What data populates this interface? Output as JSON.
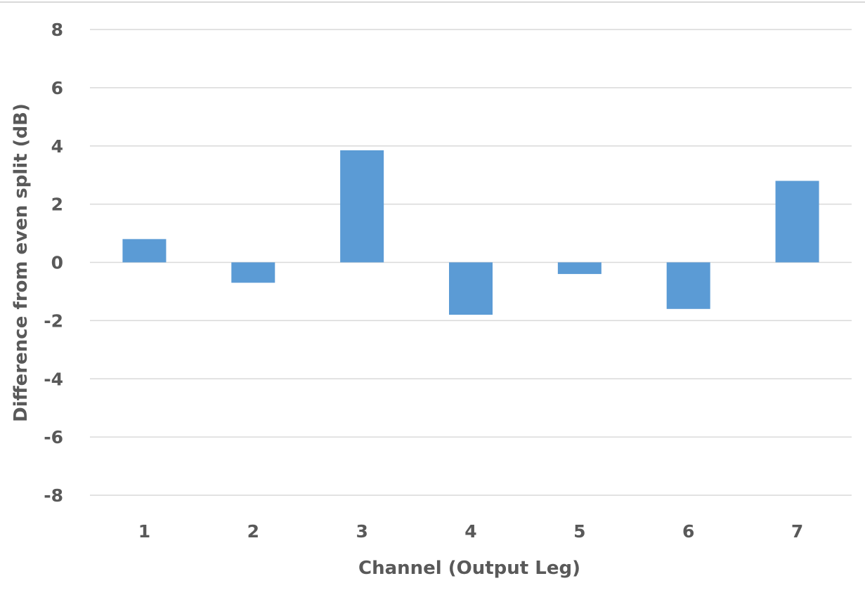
{
  "chart_data": {
    "type": "bar",
    "title": "",
    "xlabel": "Channel (Output Leg)",
    "ylabel": "Difference from even split (dB)",
    "categories": [
      "1",
      "2",
      "3",
      "4",
      "5",
      "6",
      "7"
    ],
    "values": [
      0.8,
      -0.7,
      3.85,
      -1.8,
      -0.4,
      -1.6,
      2.8
    ],
    "ylim": [
      -8,
      8
    ],
    "yticks": [
      "8",
      "6",
      "4",
      "2",
      "0",
      "-2",
      "-4",
      "-6",
      "-8"
    ],
    "grid": true,
    "legend": "none",
    "bar_color": "#5b9bd5",
    "grid_color": "#d9d9d9",
    "text_color": "#595959"
  }
}
